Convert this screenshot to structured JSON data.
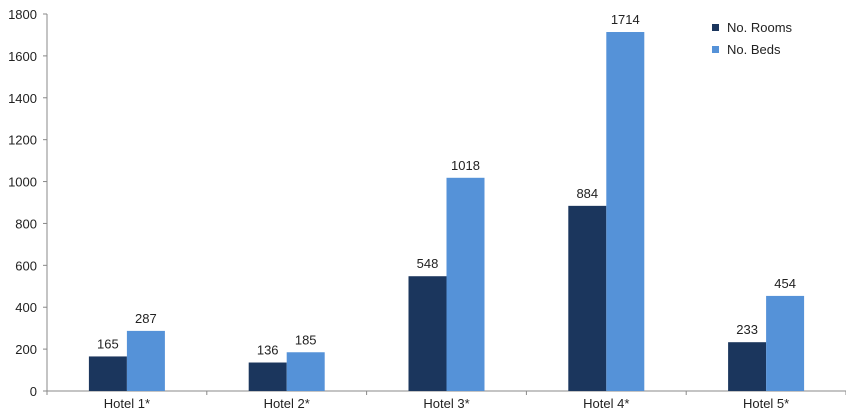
{
  "chart_data": {
    "type": "bar",
    "categories": [
      "Hotel 1*",
      "Hotel 2*",
      "Hotel 3*",
      "Hotel 4*",
      "Hotel 5*"
    ],
    "series": [
      {
        "name": "No. Rooms",
        "values": [
          165,
          136,
          548,
          884,
          233
        ],
        "color": "#1b365d"
      },
      {
        "name": "No. Beds",
        "values": [
          287,
          185,
          1018,
          1714,
          454
        ],
        "color": "#5592d8"
      }
    ],
    "ylim": [
      0,
      1800
    ],
    "yticks": [
      0,
      200,
      400,
      600,
      800,
      1000,
      1200,
      1400,
      1600,
      1800
    ],
    "grid": false,
    "legend_position": "top-right",
    "title": "",
    "xlabel": "",
    "ylabel": ""
  }
}
